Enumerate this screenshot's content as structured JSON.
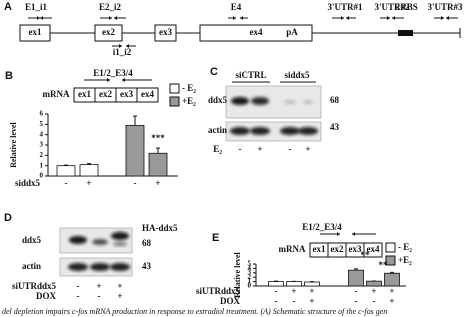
{
  "caption": "del depletion impairs c-fos mRNA production in response to estradiol treatment. (A) Schematic structure of the c-fos gen",
  "panel_a": {
    "letter": "A",
    "exons": [
      "ex1",
      "ex2",
      "ex3",
      "ex4"
    ],
    "pa": "pA",
    "primers": [
      "E1_i1",
      "E2_i2",
      "E4",
      "3'UTR#1",
      "3'UTR#2",
      "ERBS",
      "3'UTR#3"
    ],
    "primer_below": "i1_i2"
  },
  "panel_c": {
    "letter": "C",
    "groups": [
      "siCTRL",
      "siddx5"
    ],
    "blots": [
      "ddx5",
      "actin"
    ],
    "sizes": [
      "68",
      "43"
    ],
    "row_label": "E₂",
    "row": [
      "-",
      "+",
      "-",
      "+"
    ]
  },
  "panel_d": {
    "letter": "D",
    "blots": [
      "ddx5",
      "actin"
    ],
    "sizes": [
      "HA-ddx5",
      "68",
      "43"
    ],
    "rows": [
      {
        "label": "siUTRddx5",
        "values": [
          "-",
          "+",
          "+"
        ]
      },
      {
        "label": "DOX",
        "values": [
          "-",
          "-",
          "+"
        ]
      }
    ]
  },
  "chart_data": [
    {
      "type": "bar",
      "letter": "B",
      "ylabel": "Relative level",
      "amplicon": "E1/2_E3/4",
      "mrna_label": "mRNA",
      "exons": [
        "ex1",
        "ex2",
        "ex3",
        "ex4"
      ],
      "category_label": "siddx5",
      "categories": [
        "-",
        "+",
        "-",
        "+"
      ],
      "series": [
        {
          "name": "- E₂",
          "color": "#ffffff",
          "values": [
            1.0,
            1.1,
            null,
            null
          ],
          "errors": [
            0.05,
            0.1,
            null,
            null
          ]
        },
        {
          "name": "+E₂",
          "color": "#999999",
          "values": [
            null,
            null,
            4.9,
            2.2
          ],
          "errors": [
            null,
            null,
            0.9,
            0.5
          ]
        }
      ],
      "ylim": [
        0,
        6
      ],
      "yticks": [
        0,
        1,
        2,
        3,
        4,
        5,
        6
      ],
      "annotations": [
        "***"
      ]
    },
    {
      "type": "bar",
      "letter": "E",
      "ylabel": "Relative level",
      "amplicon": "E1/2_E3/4",
      "mrna_label": "mRNA",
      "exons": [
        "ex1",
        "ex2",
        "ex3",
        "ex4"
      ],
      "category_label": "siUTRddx5",
      "categories": [
        "-",
        "+",
        "+",
        "-",
        "+",
        "+"
      ],
      "extra_rows": [
        {
          "label": "DOX",
          "values": [
            "-",
            "-",
            "+",
            "-",
            "-",
            "+"
          ]
        }
      ],
      "series": [
        {
          "name": "- E₂",
          "color": "#ffffff",
          "values": [
            1.0,
            1.0,
            0.9,
            null,
            null,
            null
          ],
          "errors": [
            0.1,
            0.05,
            0.1,
            null,
            null,
            null
          ]
        },
        {
          "name": "+E₂",
          "color": "#999999",
          "values": [
            null,
            null,
            null,
            3.6,
            1.1,
            2.9
          ],
          "errors": [
            null,
            null,
            null,
            0.3,
            0.05,
            0.2
          ]
        }
      ],
      "ylim": [
        0,
        5
      ],
      "yticks": [
        0,
        1,
        2,
        3,
        4,
        5
      ],
      "annotations": [
        "**",
        "**"
      ]
    }
  ]
}
